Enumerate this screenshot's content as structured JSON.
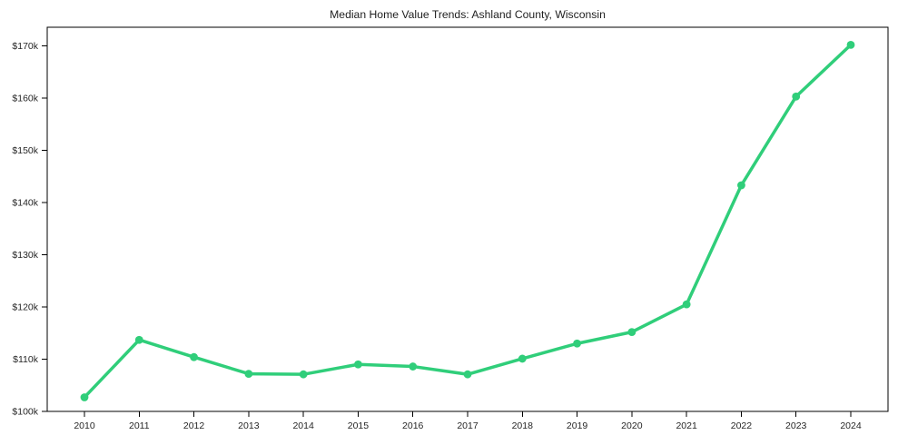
{
  "chart_data": {
    "type": "line",
    "title": "Median Home Value Trends: Ashland County, Wisconsin",
    "x": [
      2010,
      2011,
      2012,
      2013,
      2014,
      2015,
      2016,
      2017,
      2018,
      2019,
      2020,
      2021,
      2022,
      2023,
      2024
    ],
    "x_tick_labels": [
      "2010",
      "2011",
      "2012",
      "2013",
      "2014",
      "2015",
      "2016",
      "2017",
      "2018",
      "2019",
      "2020",
      "2021",
      "2022",
      "2023",
      "2024"
    ],
    "values": [
      102700,
      113700,
      110400,
      107200,
      107100,
      109000,
      108600,
      107100,
      110100,
      113000,
      115200,
      120500,
      143300,
      160300,
      170200
    ],
    "y_ticks": [
      100000,
      110000,
      120000,
      130000,
      140000,
      150000,
      160000,
      170000
    ],
    "y_tick_labels": [
      "$100k",
      "$110k",
      "$120k",
      "$130k",
      "$140k",
      "$150k",
      "$160k",
      "$170k"
    ],
    "xlim": [
      2009.32,
      2024.68
    ],
    "ylim": [
      100000,
      173570
    ],
    "grid": false,
    "legend": "none",
    "marker": "circle",
    "line_color": "#30ce7a",
    "axis_color": "#000000",
    "tick_label_color": "#262626",
    "background_color": "#ffffff"
  }
}
